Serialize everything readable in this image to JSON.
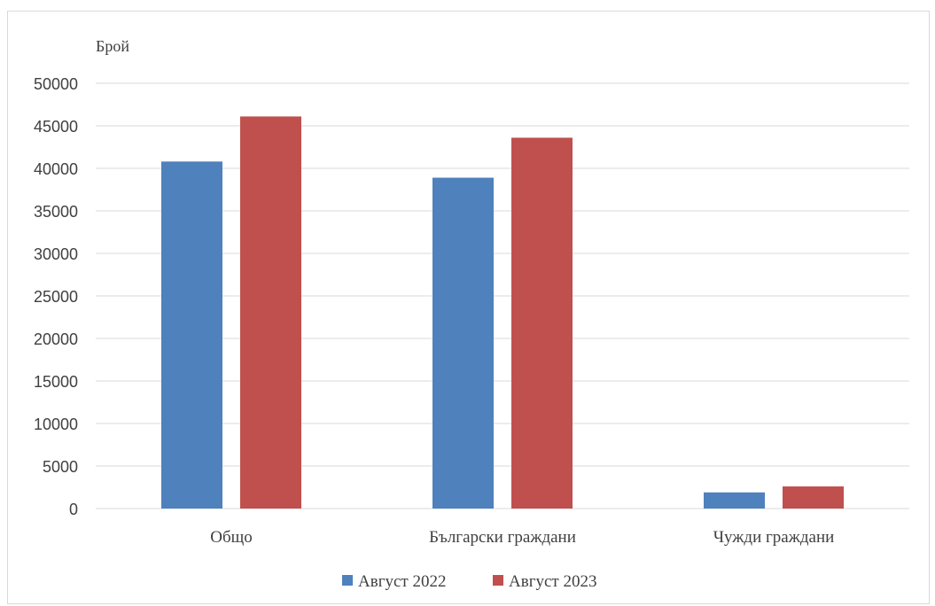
{
  "chart_data": {
    "type": "bar",
    "ylabel": "Брой",
    "categories": [
      "Общо",
      "Български граждани",
      "Чужди граждани"
    ],
    "series": [
      {
        "name": "Август 2022",
        "color": "#4f81bd",
        "values": [
          40800,
          38900,
          1900
        ]
      },
      {
        "name": "Август 2023",
        "color": "#c0504d",
        "values": [
          46100,
          43600,
          2600
        ]
      }
    ],
    "ylim": [
      0,
      50000
    ],
    "yticks": [
      0,
      5000,
      10000,
      15000,
      20000,
      25000,
      30000,
      35000,
      40000,
      45000,
      50000
    ],
    "grid": true,
    "legend_position": "bottom"
  }
}
